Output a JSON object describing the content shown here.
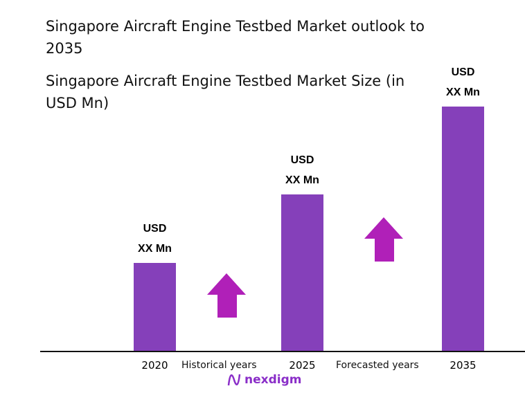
{
  "titles": {
    "line1": "Singapore Aircraft Engine Testbed Market outlook to 2035",
    "line2": "Singapore Aircraft Engine Testbed Market Size (in USD Mn)"
  },
  "chart_data": {
    "type": "bar",
    "categories": [
      "2020",
      "2025",
      "2035"
    ],
    "relative_values": [
      0.36,
      0.64,
      1.0
    ],
    "data_labels": [
      {
        "top": "USD",
        "bottom": "XX Mn"
      },
      {
        "top": "USD",
        "bottom": "XX Mn"
      },
      {
        "top": "USD",
        "bottom": "XX Mn"
      }
    ],
    "period_labels": [
      "Historical years",
      "Forecasted years"
    ],
    "grid": false,
    "bar_color": "#8540BA",
    "arrow_color": "#B020B8"
  },
  "brand": {
    "name": "nexdigm"
  }
}
